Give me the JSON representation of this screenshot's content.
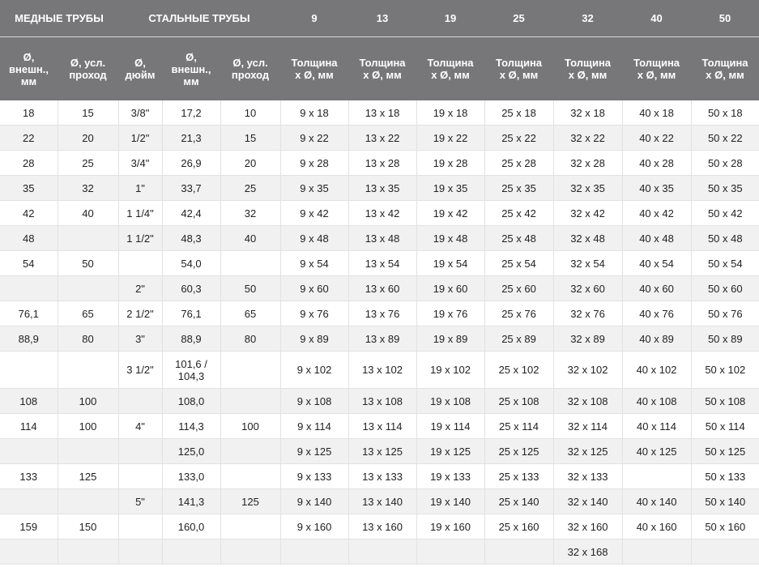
{
  "header": {
    "groups": [
      "МЕДНЫЕ ТРУБЫ",
      "СТАЛЬНЫЕ ТРУБЫ",
      "9",
      "13",
      "19",
      "25",
      "32",
      "40",
      "50"
    ],
    "columns": [
      "Ø, внешн., мм",
      "Ø, усл. проход",
      "Ø, дюйм",
      "Ø, внешн., мм",
      "Ø, усл. проход",
      "Толщина x Ø, мм",
      "Толщина x Ø, мм",
      "Толщина x Ø, мм",
      "Толщина x Ø, мм",
      "Толщина x Ø, мм",
      "Толщина x Ø, мм",
      "Толщина x Ø, мм"
    ]
  },
  "rows": [
    [
      "18",
      "15",
      "3/8\"",
      "17,2",
      "10",
      "9 x 18",
      "13 x 18",
      "19 x 18",
      "25 x 18",
      "32 x 18",
      "40 x 18",
      "50 x 18"
    ],
    [
      "22",
      "20",
      "1/2\"",
      "21,3",
      "15",
      "9 x 22",
      "13 x 22",
      "19 x 22",
      "25 x 22",
      "32 x 22",
      "40 x 22",
      "50 x 22"
    ],
    [
      "28",
      "25",
      "3/4\"",
      "26,9",
      "20",
      "9 x 28",
      "13 x 28",
      "19 x 28",
      "25 x 28",
      "32 x 28",
      "40 x 28",
      "50 x 28"
    ],
    [
      "35",
      "32",
      "1\"",
      "33,7",
      "25",
      "9 x 35",
      "13 x 35",
      "19 x 35",
      "25 x 35",
      "32 x 35",
      "40 x 35",
      "50 x 35"
    ],
    [
      "42",
      "40",
      "1 1/4\"",
      "42,4",
      "32",
      "9 x 42",
      "13 x 42",
      "19 x 42",
      "25 x 42",
      "32 x 42",
      "40 x 42",
      "50 x 42"
    ],
    [
      "48",
      "",
      "1 1/2\"",
      "48,3",
      "40",
      "9 x 48",
      "13 x 48",
      "19 x 48",
      "25 x 48",
      "32 x 48",
      "40 x 48",
      "50 x 48"
    ],
    [
      "54",
      "50",
      "",
      "54,0",
      "",
      "9 x 54",
      "13 x 54",
      "19 x 54",
      "25 x 54",
      "32 x 54",
      "40 x 54",
      "50 x 54"
    ],
    [
      "",
      "",
      "2\"",
      "60,3",
      "50",
      "9 x 60",
      "13 x 60",
      "19 x 60",
      "25 x 60",
      "32 x 60",
      "40 x 60",
      "50 x 60"
    ],
    [
      "76,1",
      "65",
      "2 1/2\"",
      "76,1",
      "65",
      "9 x 76",
      "13 x 76",
      "19 x 76",
      "25 x 76",
      "32 x 76",
      "40 x 76",
      "50 x 76"
    ],
    [
      "88,9",
      "80",
      "3\"",
      "88,9",
      "80",
      "9 x 89",
      "13 x 89",
      "19 x 89",
      "25 x 89",
      "32 x 89",
      "40 x 89",
      "50 x 89"
    ],
    [
      "",
      "",
      "3 1/2\"",
      "101,6 / 104,3",
      "",
      "9 x 102",
      "13 x 102",
      "19 x 102",
      "25 x 102",
      "32 x 102",
      "40 x 102",
      "50 x 102"
    ],
    [
      "108",
      "100",
      "",
      "108,0",
      "",
      "9 x 108",
      "13 x 108",
      "19 x 108",
      "25 x 108",
      "32 x 108",
      "40 x 108",
      "50 x 108"
    ],
    [
      "114",
      "100",
      "4\"",
      "114,3",
      "100",
      "9 x 114",
      "13 x 114",
      "19 x 114",
      "25 x 114",
      "32 x 114",
      "40 x 114",
      "50 x 114"
    ],
    [
      "",
      "",
      "",
      "125,0",
      "",
      "9 x 125",
      "13 x 125",
      "19 x 125",
      "25 x 125",
      "32 x 125",
      "40 x 125",
      "50 x 125"
    ],
    [
      "133",
      "125",
      "",
      "133,0",
      "",
      "9 x 133",
      "13 x 133",
      "19 x 133",
      "25 x 133",
      "32 x 133",
      "",
      "50 x 133"
    ],
    [
      "",
      "",
      "5\"",
      "141,3",
      "125",
      "9 x 140",
      "13 x 140",
      "19 x 140",
      "25 x 140",
      "32 x 140",
      "40 x 140",
      "50 x 140"
    ],
    [
      "159",
      "150",
      "",
      "160,0",
      "",
      "9 x 160",
      "13 x 160",
      "19 x 160",
      "25 x 160",
      "32 x 160",
      "40 x 160",
      "50 x 160"
    ],
    [
      "",
      "",
      "",
      "",
      "",
      "",
      "",
      "",
      "",
      "32 x 168",
      "",
      ""
    ]
  ]
}
